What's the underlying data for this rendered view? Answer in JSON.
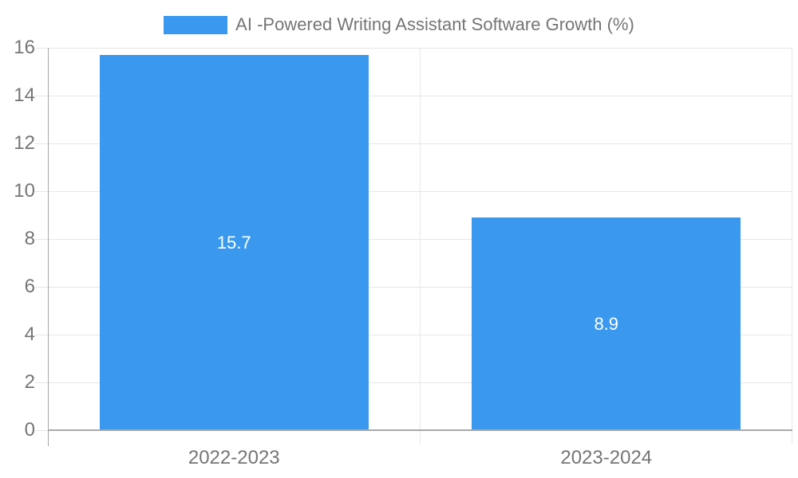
{
  "legend": {
    "swatch_color": "#3A99EE"
  },
  "chart_data": {
    "type": "bar",
    "title": "AI -Powered Writing Assistant Software Growth (%)",
    "series_name": "AI -Powered Writing Assistant Software Growth (%)",
    "categories": [
      "2022-2023",
      "2023-2024"
    ],
    "values": [
      15.7,
      8.9
    ],
    "value_labels": [
      "15.7",
      "8.9"
    ],
    "bar_color": "#3A99EE",
    "value_label_color": "#ffffff",
    "xlabel": "",
    "ylabel": "",
    "ylim": [
      0,
      16
    ],
    "yticks": [
      0,
      2,
      4,
      6,
      8,
      10,
      12,
      14,
      16
    ],
    "grid": true,
    "legend_position": "top",
    "axis_text_color": "#757575",
    "gridline_color": "#e6e6e6",
    "axis_line_color": "#a9a9a9"
  }
}
